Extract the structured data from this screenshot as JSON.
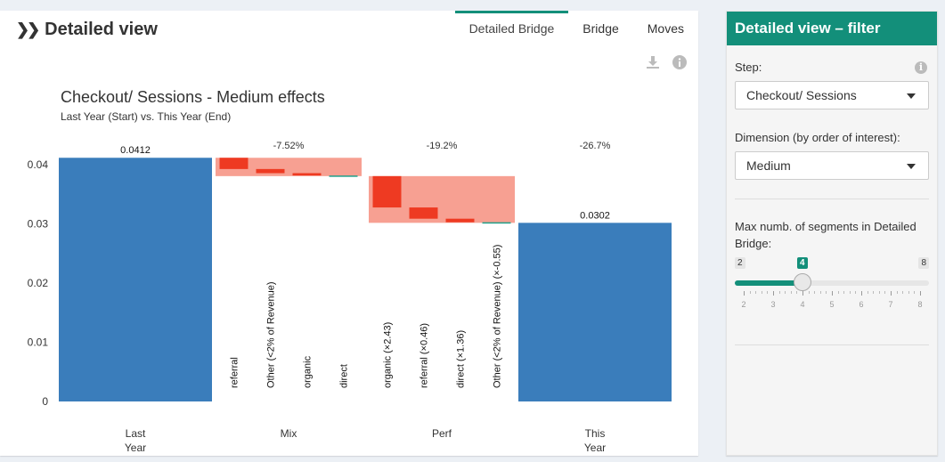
{
  "main": {
    "title": "Detailed view",
    "tabs": [
      {
        "label": "Detailed Bridge",
        "active": true
      },
      {
        "label": "Bridge",
        "active": false
      },
      {
        "label": "Moves",
        "active": false
      }
    ]
  },
  "chart_data": {
    "type": "bar",
    "subtype": "waterfall",
    "title": "Checkout/ Sessions - Medium effects",
    "subtitle": "Last Year (Start) vs. This Year (End)",
    "ylim": [
      0,
      0.045
    ],
    "yticks": [
      "0",
      "0.01",
      "0.02",
      "0.03",
      "0.04"
    ],
    "categories": [
      "Last\nYear",
      "Mix",
      "Perf",
      "This\nYear"
    ],
    "totals": [
      {
        "category": "Last\nYear",
        "value": 0.0412,
        "label": "0.0412",
        "color": "#3a7dbb"
      },
      {
        "category": "This\nYear",
        "value": 0.0302,
        "label": "0.0302",
        "color": "#3a7dbb"
      }
    ],
    "groups": [
      {
        "category": "Mix",
        "pct_label": "-7.52%",
        "start": 0.0412,
        "end": 0.0381,
        "segments": [
          {
            "label": "referral",
            "from": 0.0412,
            "to": 0.0393,
            "color": "#ee3a22"
          },
          {
            "label": "Other (<2% of Revenue)",
            "from": 0.0393,
            "to": 0.0386,
            "color": "#ee3a22"
          },
          {
            "label": "organic",
            "from": 0.0386,
            "to": 0.0382,
            "color": "#ee3a22"
          },
          {
            "label": "direct",
            "from": 0.0382,
            "to": 0.0381,
            "color": "#1ea08a"
          }
        ]
      },
      {
        "category": "Perf",
        "pct_label": "-19.2%",
        "start": 0.0381,
        "end": 0.0302,
        "segments": [
          {
            "label": "organic (×2.43)",
            "from": 0.0381,
            "to": 0.0328,
            "color": "#ee3a22"
          },
          {
            "label": "referral (×0.46)",
            "from": 0.0328,
            "to": 0.0309,
            "color": "#ee3a22"
          },
          {
            "label": "direct (×1.36)",
            "from": 0.0309,
            "to": 0.0303,
            "color": "#ee3a22"
          },
          {
            "label": "Other (<2% of Revenue) (×-0.55)",
            "from": 0.0303,
            "to": 0.0302,
            "color": "#1ea08a"
          }
        ]
      }
    ],
    "overall_pct_label": "-26.7%",
    "group_band_color": "#f7a092"
  },
  "filter": {
    "title": "Detailed view – filter",
    "step_label": "Step:",
    "step_value": "Checkout/ Sessions",
    "dimension_label": "Dimension (by order of interest):",
    "dimension_value": "Medium",
    "segments_label_1": "Max numb. of segments in Detailed",
    "segments_label_2": "Bridge:",
    "slider": {
      "min": 2,
      "max": 8,
      "value": 4,
      "min_label": "2",
      "max_label": "8",
      "value_label": "4",
      "ticks": [
        "2",
        "3",
        "4",
        "5",
        "6",
        "7",
        "8"
      ],
      "accent": "#138f7a"
    }
  }
}
